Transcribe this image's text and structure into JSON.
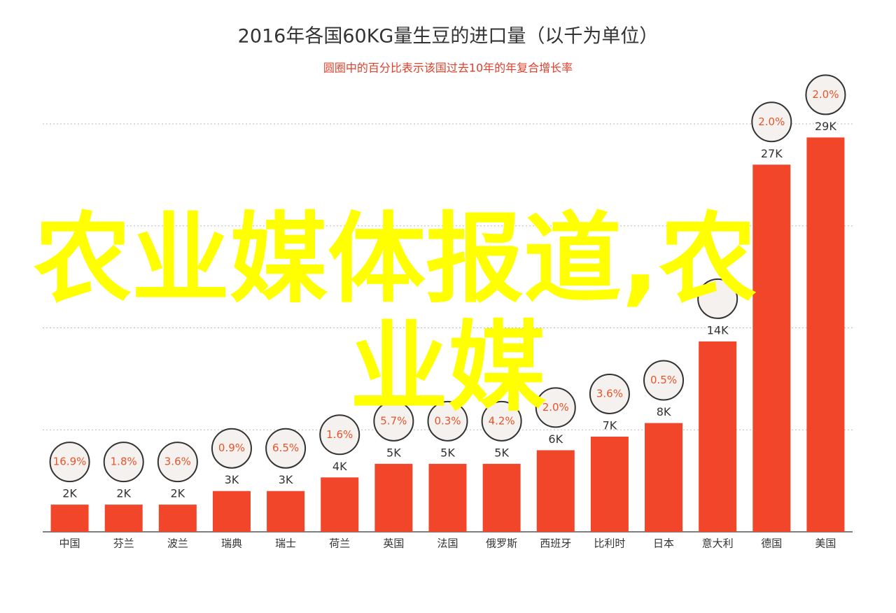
{
  "chart_data": {
    "type": "bar",
    "title": "2016年各国60KG量生豆的进口量（以千为单位）",
    "subtitle": "圆圈中的百分比表示该国过去10年的年复合增长率",
    "categories": [
      "中国",
      "芬兰",
      "波兰",
      "瑞典",
      "瑞士",
      "荷兰",
      "英国",
      "法国",
      "俄罗斯",
      "西班牙",
      "比利时",
      "日本",
      "意大利",
      "德国",
      "美国"
    ],
    "series": [
      {
        "color": "#f2462a",
        "values": [
          2,
          2,
          2,
          3,
          3,
          4,
          5,
          5,
          5,
          6,
          7,
          8,
          14,
          27,
          29
        ],
        "value_labels": [
          "2K",
          "2K",
          "2K",
          "3K",
          "3K",
          "4K",
          "5K",
          "5K",
          "5K",
          "6K",
          "7K",
          "8K",
          "14K",
          "27K",
          "29K"
        ]
      },
      {
        "color": "#e8542a",
        "values": [
          16.9,
          1.8,
          3.6,
          0.9,
          6.5,
          1.6,
          5.7,
          0.3,
          4.2,
          2.0,
          3.6,
          0.5,
          null,
          2.0,
          2.0
        ],
        "value_labels": [
          "16.9%",
          "1.8%",
          "3.6%",
          "0.9%",
          "6.5%",
          "1.6%",
          "5.7%",
          "0.3%",
          "4.2%",
          "2.0%",
          "3.6%",
          "0.5%",
          null,
          "2.0%",
          "2.0%"
        ]
      }
    ],
    "ylim": [
      0,
      30
    ],
    "yticks": [
      0,
      7.5,
      15,
      22.5,
      30
    ],
    "grid": true,
    "watermark": [
      "农业媒体报道,农",
      "业媒"
    ]
  }
}
